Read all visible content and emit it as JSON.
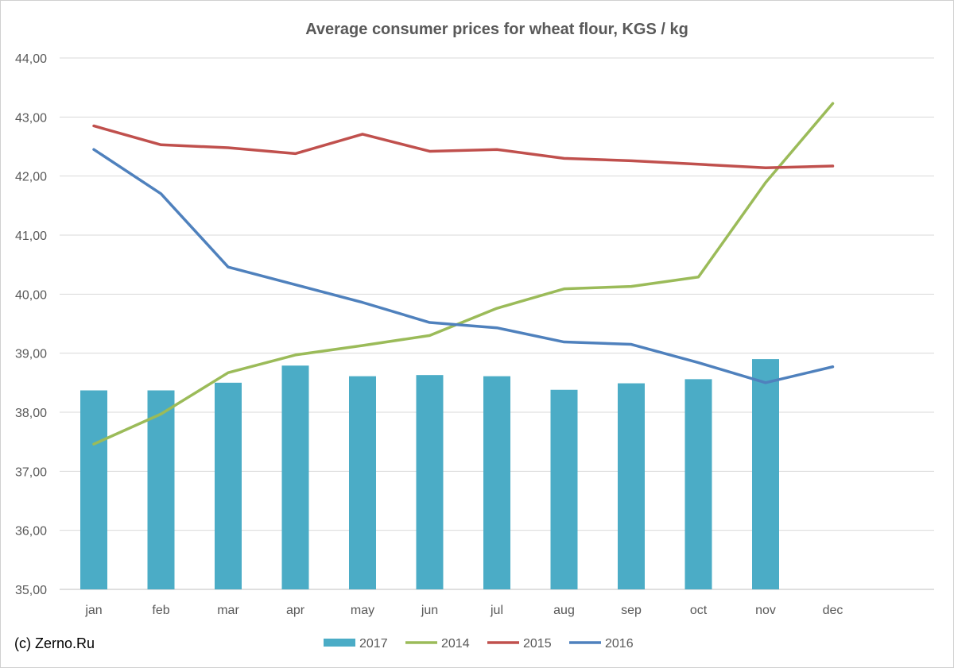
{
  "chart_data": {
    "type": "bar+line",
    "title": "Average consumer prices for wheat flour, KGS / kg",
    "categories": [
      "jan",
      "feb",
      "mar",
      "apr",
      "may",
      "jun",
      "jul",
      "aug",
      "sep",
      "oct",
      "nov",
      "dec"
    ],
    "ylim": [
      35,
      44
    ],
    "yticks": [
      "35,00",
      "36,00",
      "37,00",
      "38,00",
      "39,00",
      "40,00",
      "41,00",
      "42,00",
      "43,00",
      "44,00"
    ],
    "grid": true,
    "legend_position": "bottom",
    "series": [
      {
        "name": "2017",
        "kind": "bar",
        "color": "#4bacc6",
        "values": [
          38.37,
          38.37,
          38.5,
          38.79,
          38.61,
          38.63,
          38.61,
          38.38,
          38.49,
          38.56,
          38.9,
          null
        ]
      },
      {
        "name": "2014",
        "kind": "line",
        "color": "#9bbb59",
        "values": [
          37.46,
          37.97,
          38.67,
          38.97,
          39.13,
          39.3,
          39.76,
          40.09,
          40.13,
          40.29,
          41.89,
          43.23
        ]
      },
      {
        "name": "2015",
        "kind": "line",
        "color": "#c0504d",
        "values": [
          42.85,
          42.53,
          42.48,
          42.38,
          42.71,
          42.42,
          42.45,
          42.3,
          42.26,
          42.2,
          42.14,
          42.17
        ]
      },
      {
        "name": "2016",
        "kind": "line",
        "color": "#4f81bd",
        "values": [
          42.45,
          41.7,
          40.46,
          40.16,
          39.86,
          39.52,
          39.43,
          39.19,
          39.15,
          38.84,
          38.5,
          38.77
        ]
      }
    ]
  },
  "credit": "(c) Zerno.Ru",
  "colors": {
    "grid": "#d9d9d9",
    "text": "#595959"
  }
}
